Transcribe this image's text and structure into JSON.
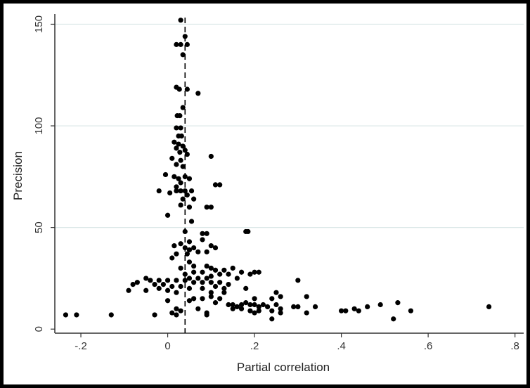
{
  "chart_data": {
    "type": "scatter",
    "title": "",
    "xlabel": "Partial correlation",
    "ylabel": "Precision",
    "xlim": [
      -0.26,
      0.82
    ],
    "ylim": [
      -2,
      155
    ],
    "x_ticks": [
      -0.2,
      0,
      0.2,
      0.4,
      0.6,
      0.8
    ],
    "x_tick_labels": [
      "-.2",
      "0",
      ".2",
      ".4",
      ".6",
      ".8"
    ],
    "y_ticks": [
      0,
      50,
      100,
      150
    ],
    "y_tick_labels": [
      "0",
      "50",
      "100",
      "150"
    ],
    "grid": "horizontal",
    "reference_line": {
      "x": 0.04,
      "style": "dashed"
    },
    "colors": {
      "points": "#000000",
      "grid": "#dbe7e7",
      "axis": "#333333"
    },
    "points": [
      [
        0.03,
        152
      ],
      [
        0.04,
        144
      ],
      [
        0.02,
        140
      ],
      [
        0.03,
        140
      ],
      [
        0.045,
        140
      ],
      [
        0.035,
        135
      ],
      [
        0.02,
        119
      ],
      [
        0.027,
        118
      ],
      [
        0.045,
        118
      ],
      [
        0.07,
        116
      ],
      [
        0.035,
        109
      ],
      [
        0.028,
        105
      ],
      [
        0.022,
        105
      ],
      [
        0.02,
        99
      ],
      [
        0.03,
        99
      ],
      [
        0.025,
        95
      ],
      [
        0.032,
        95
      ],
      [
        0.015,
        92
      ],
      [
        0.025,
        91
      ],
      [
        0.02,
        89
      ],
      [
        0.035,
        90
      ],
      [
        0.04,
        88
      ],
      [
        0.028,
        87
      ],
      [
        0.045,
        86
      ],
      [
        0.01,
        84
      ],
      [
        0.03,
        83
      ],
      [
        0.02,
        81
      ],
      [
        0.035,
        80
      ],
      [
        0.1,
        85
      ],
      [
        -0.005,
        76
      ],
      [
        0.015,
        75
      ],
      [
        0.025,
        74
      ],
      [
        0.04,
        75
      ],
      [
        0.05,
        74
      ],
      [
        0.03,
        72
      ],
      [
        0.02,
        70
      ],
      [
        0.11,
        71
      ],
      [
        0.12,
        71
      ],
      [
        -0.02,
        68
      ],
      [
        0.02,
        68
      ],
      [
        0.03,
        68
      ],
      [
        0.04,
        68
      ],
      [
        0.055,
        68
      ],
      [
        0.005,
        67
      ],
      [
        0.045,
        66
      ],
      [
        0.035,
        64
      ],
      [
        0.06,
        64
      ],
      [
        0.03,
        61
      ],
      [
        0.09,
        60
      ],
      [
        0.1,
        60
      ],
      [
        0.05,
        60
      ],
      [
        0.0,
        56
      ],
      [
        0.055,
        53
      ],
      [
        0.04,
        48
      ],
      [
        0.08,
        47
      ],
      [
        0.09,
        47
      ],
      [
        0.18,
        48
      ],
      [
        0.185,
        48
      ],
      [
        0.05,
        43
      ],
      [
        0.08,
        44
      ],
      [
        0.03,
        42
      ],
      [
        0.015,
        41
      ],
      [
        0.06,
        40
      ],
      [
        0.1,
        41
      ],
      [
        0.11,
        40
      ],
      [
        0.05,
        39
      ],
      [
        0.07,
        38
      ],
      [
        0.09,
        38
      ],
      [
        0.02,
        37
      ],
      [
        0.04,
        40
      ],
      [
        0.045,
        37
      ],
      [
        0.01,
        35
      ],
      [
        0.05,
        33
      ],
      [
        0.06,
        31
      ],
      [
        0.09,
        31
      ],
      [
        0.1,
        30
      ],
      [
        0.03,
        30
      ],
      [
        0.04,
        27
      ],
      [
        0.06,
        28
      ],
      [
        0.08,
        28
      ],
      [
        0.11,
        29
      ],
      [
        0.13,
        29
      ],
      [
        0.15,
        30
      ],
      [
        0.17,
        28
      ],
      [
        0.19,
        27
      ],
      [
        0.2,
        28
      ],
      [
        0.21,
        28
      ],
      [
        0.14,
        27
      ],
      [
        0.12,
        27
      ],
      [
        0.1,
        26
      ],
      [
        0.16,
        25
      ],
      [
        0.05,
        25
      ],
      [
        0.07,
        25
      ],
      [
        0.09,
        25
      ],
      [
        -0.05,
        25
      ],
      [
        -0.04,
        24
      ],
      [
        -0.02,
        24
      ],
      [
        0.0,
        24
      ],
      [
        0.02,
        24
      ],
      [
        0.04,
        24
      ],
      [
        0.06,
        23
      ],
      [
        0.08,
        23
      ],
      [
        0.1,
        23
      ],
      [
        0.12,
        23
      ],
      [
        0.14,
        22
      ],
      [
        -0.08,
        22
      ],
      [
        -0.07,
        23
      ],
      [
        -0.03,
        22
      ],
      [
        -0.01,
        22
      ],
      [
        0.01,
        21
      ],
      [
        0.03,
        21
      ],
      [
        0.05,
        20
      ],
      [
        0.08,
        20
      ],
      [
        0.11,
        21
      ],
      [
        0.13,
        20
      ],
      [
        0.18,
        20
      ],
      [
        0.3,
        24
      ],
      [
        -0.09,
        19
      ],
      [
        -0.05,
        19
      ],
      [
        -0.02,
        20
      ],
      [
        0.0,
        19
      ],
      [
        0.02,
        18
      ],
      [
        0.1,
        18
      ],
      [
        0.13,
        18
      ],
      [
        0.25,
        18
      ],
      [
        0.26,
        16
      ],
      [
        0.32,
        16
      ],
      [
        0.2,
        15
      ],
      [
        0.24,
        15
      ],
      [
        0.0,
        14
      ],
      [
        0.05,
        14
      ],
      [
        0.06,
        15
      ],
      [
        0.08,
        15
      ],
      [
        0.11,
        13
      ],
      [
        0.12,
        15
      ],
      [
        0.1,
        16
      ],
      [
        0.14,
        12
      ],
      [
        0.15,
        12
      ],
      [
        0.16,
        11
      ],
      [
        0.17,
        12
      ],
      [
        0.18,
        13
      ],
      [
        0.19,
        12
      ],
      [
        0.2,
        12
      ],
      [
        0.21,
        11
      ],
      [
        0.22,
        12
      ],
      [
        0.23,
        11
      ],
      [
        0.25,
        12
      ],
      [
        0.26,
        10
      ],
      [
        0.29,
        11
      ],
      [
        0.34,
        11
      ],
      [
        0.15,
        10
      ],
      [
        0.17,
        10
      ],
      [
        0.19,
        9
      ],
      [
        0.2,
        8
      ],
      [
        0.21,
        9
      ],
      [
        0.24,
        9
      ],
      [
        0.26,
        8
      ],
      [
        0.3,
        11
      ],
      [
        0.02,
        10
      ],
      [
        0.03,
        9
      ],
      [
        0.07,
        10
      ],
      [
        0.09,
        8
      ],
      [
        0.01,
        8
      ],
      [
        0.02,
        7
      ],
      [
        0.09,
        7
      ],
      [
        0.32,
        8
      ],
      [
        0.24,
        5
      ],
      [
        0.4,
        9
      ],
      [
        0.41,
        9
      ],
      [
        0.43,
        10
      ],
      [
        0.44,
        9
      ],
      [
        0.46,
        11
      ],
      [
        0.49,
        12
      ],
      [
        0.53,
        13
      ],
      [
        0.52,
        5
      ],
      [
        0.56,
        9
      ],
      [
        0.74,
        11
      ],
      [
        -0.235,
        7
      ],
      [
        -0.21,
        7
      ],
      [
        -0.13,
        7
      ],
      [
        -0.03,
        7
      ]
    ]
  }
}
